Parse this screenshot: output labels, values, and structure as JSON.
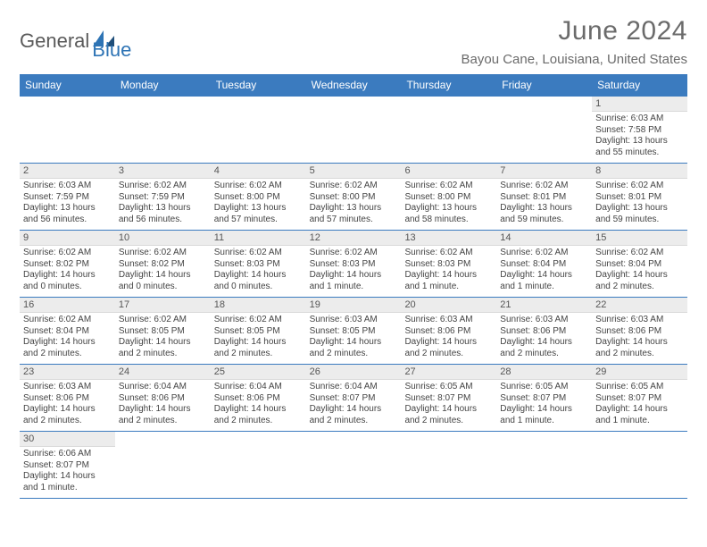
{
  "header": {
    "logo_general": "General",
    "logo_blue": "Blue",
    "title": "June 2024",
    "location": "Bayou Cane, Louisiana, United States"
  },
  "colors": {
    "header_bg": "#3b7bbf",
    "header_text": "#ffffff",
    "daynum_bg": "#ececec",
    "border": "#3b7bbf",
    "text": "#444444",
    "title_text": "#6b6b6b",
    "logo_gray": "#5a5a5a",
    "logo_blue": "#2e74b5"
  },
  "dow": [
    "Sunday",
    "Monday",
    "Tuesday",
    "Wednesday",
    "Thursday",
    "Friday",
    "Saturday"
  ],
  "weeks": [
    [
      {
        "n": "",
        "sunrise": "",
        "sunset": "",
        "daylight": ""
      },
      {
        "n": "",
        "sunrise": "",
        "sunset": "",
        "daylight": ""
      },
      {
        "n": "",
        "sunrise": "",
        "sunset": "",
        "daylight": ""
      },
      {
        "n": "",
        "sunrise": "",
        "sunset": "",
        "daylight": ""
      },
      {
        "n": "",
        "sunrise": "",
        "sunset": "",
        "daylight": ""
      },
      {
        "n": "",
        "sunrise": "",
        "sunset": "",
        "daylight": ""
      },
      {
        "n": "1",
        "sunrise": "Sunrise: 6:03 AM",
        "sunset": "Sunset: 7:58 PM",
        "daylight": "Daylight: 13 hours and 55 minutes."
      }
    ],
    [
      {
        "n": "2",
        "sunrise": "Sunrise: 6:03 AM",
        "sunset": "Sunset: 7:59 PM",
        "daylight": "Daylight: 13 hours and 56 minutes."
      },
      {
        "n": "3",
        "sunrise": "Sunrise: 6:02 AM",
        "sunset": "Sunset: 7:59 PM",
        "daylight": "Daylight: 13 hours and 56 minutes."
      },
      {
        "n": "4",
        "sunrise": "Sunrise: 6:02 AM",
        "sunset": "Sunset: 8:00 PM",
        "daylight": "Daylight: 13 hours and 57 minutes."
      },
      {
        "n": "5",
        "sunrise": "Sunrise: 6:02 AM",
        "sunset": "Sunset: 8:00 PM",
        "daylight": "Daylight: 13 hours and 57 minutes."
      },
      {
        "n": "6",
        "sunrise": "Sunrise: 6:02 AM",
        "sunset": "Sunset: 8:00 PM",
        "daylight": "Daylight: 13 hours and 58 minutes."
      },
      {
        "n": "7",
        "sunrise": "Sunrise: 6:02 AM",
        "sunset": "Sunset: 8:01 PM",
        "daylight": "Daylight: 13 hours and 59 minutes."
      },
      {
        "n": "8",
        "sunrise": "Sunrise: 6:02 AM",
        "sunset": "Sunset: 8:01 PM",
        "daylight": "Daylight: 13 hours and 59 minutes."
      }
    ],
    [
      {
        "n": "9",
        "sunrise": "Sunrise: 6:02 AM",
        "sunset": "Sunset: 8:02 PM",
        "daylight": "Daylight: 14 hours and 0 minutes."
      },
      {
        "n": "10",
        "sunrise": "Sunrise: 6:02 AM",
        "sunset": "Sunset: 8:02 PM",
        "daylight": "Daylight: 14 hours and 0 minutes."
      },
      {
        "n": "11",
        "sunrise": "Sunrise: 6:02 AM",
        "sunset": "Sunset: 8:03 PM",
        "daylight": "Daylight: 14 hours and 0 minutes."
      },
      {
        "n": "12",
        "sunrise": "Sunrise: 6:02 AM",
        "sunset": "Sunset: 8:03 PM",
        "daylight": "Daylight: 14 hours and 1 minute."
      },
      {
        "n": "13",
        "sunrise": "Sunrise: 6:02 AM",
        "sunset": "Sunset: 8:03 PM",
        "daylight": "Daylight: 14 hours and 1 minute."
      },
      {
        "n": "14",
        "sunrise": "Sunrise: 6:02 AM",
        "sunset": "Sunset: 8:04 PM",
        "daylight": "Daylight: 14 hours and 1 minute."
      },
      {
        "n": "15",
        "sunrise": "Sunrise: 6:02 AM",
        "sunset": "Sunset: 8:04 PM",
        "daylight": "Daylight: 14 hours and 2 minutes."
      }
    ],
    [
      {
        "n": "16",
        "sunrise": "Sunrise: 6:02 AM",
        "sunset": "Sunset: 8:04 PM",
        "daylight": "Daylight: 14 hours and 2 minutes."
      },
      {
        "n": "17",
        "sunrise": "Sunrise: 6:02 AM",
        "sunset": "Sunset: 8:05 PM",
        "daylight": "Daylight: 14 hours and 2 minutes."
      },
      {
        "n": "18",
        "sunrise": "Sunrise: 6:02 AM",
        "sunset": "Sunset: 8:05 PM",
        "daylight": "Daylight: 14 hours and 2 minutes."
      },
      {
        "n": "19",
        "sunrise": "Sunrise: 6:03 AM",
        "sunset": "Sunset: 8:05 PM",
        "daylight": "Daylight: 14 hours and 2 minutes."
      },
      {
        "n": "20",
        "sunrise": "Sunrise: 6:03 AM",
        "sunset": "Sunset: 8:06 PM",
        "daylight": "Daylight: 14 hours and 2 minutes."
      },
      {
        "n": "21",
        "sunrise": "Sunrise: 6:03 AM",
        "sunset": "Sunset: 8:06 PM",
        "daylight": "Daylight: 14 hours and 2 minutes."
      },
      {
        "n": "22",
        "sunrise": "Sunrise: 6:03 AM",
        "sunset": "Sunset: 8:06 PM",
        "daylight": "Daylight: 14 hours and 2 minutes."
      }
    ],
    [
      {
        "n": "23",
        "sunrise": "Sunrise: 6:03 AM",
        "sunset": "Sunset: 8:06 PM",
        "daylight": "Daylight: 14 hours and 2 minutes."
      },
      {
        "n": "24",
        "sunrise": "Sunrise: 6:04 AM",
        "sunset": "Sunset: 8:06 PM",
        "daylight": "Daylight: 14 hours and 2 minutes."
      },
      {
        "n": "25",
        "sunrise": "Sunrise: 6:04 AM",
        "sunset": "Sunset: 8:06 PM",
        "daylight": "Daylight: 14 hours and 2 minutes."
      },
      {
        "n": "26",
        "sunrise": "Sunrise: 6:04 AM",
        "sunset": "Sunset: 8:07 PM",
        "daylight": "Daylight: 14 hours and 2 minutes."
      },
      {
        "n": "27",
        "sunrise": "Sunrise: 6:05 AM",
        "sunset": "Sunset: 8:07 PM",
        "daylight": "Daylight: 14 hours and 2 minutes."
      },
      {
        "n": "28",
        "sunrise": "Sunrise: 6:05 AM",
        "sunset": "Sunset: 8:07 PM",
        "daylight": "Daylight: 14 hours and 1 minute."
      },
      {
        "n": "29",
        "sunrise": "Sunrise: 6:05 AM",
        "sunset": "Sunset: 8:07 PM",
        "daylight": "Daylight: 14 hours and 1 minute."
      }
    ],
    [
      {
        "n": "30",
        "sunrise": "Sunrise: 6:06 AM",
        "sunset": "Sunset: 8:07 PM",
        "daylight": "Daylight: 14 hours and 1 minute."
      },
      {
        "n": "",
        "sunrise": "",
        "sunset": "",
        "daylight": ""
      },
      {
        "n": "",
        "sunrise": "",
        "sunset": "",
        "daylight": ""
      },
      {
        "n": "",
        "sunrise": "",
        "sunset": "",
        "daylight": ""
      },
      {
        "n": "",
        "sunrise": "",
        "sunset": "",
        "daylight": ""
      },
      {
        "n": "",
        "sunrise": "",
        "sunset": "",
        "daylight": ""
      },
      {
        "n": "",
        "sunrise": "",
        "sunset": "",
        "daylight": ""
      }
    ]
  ]
}
